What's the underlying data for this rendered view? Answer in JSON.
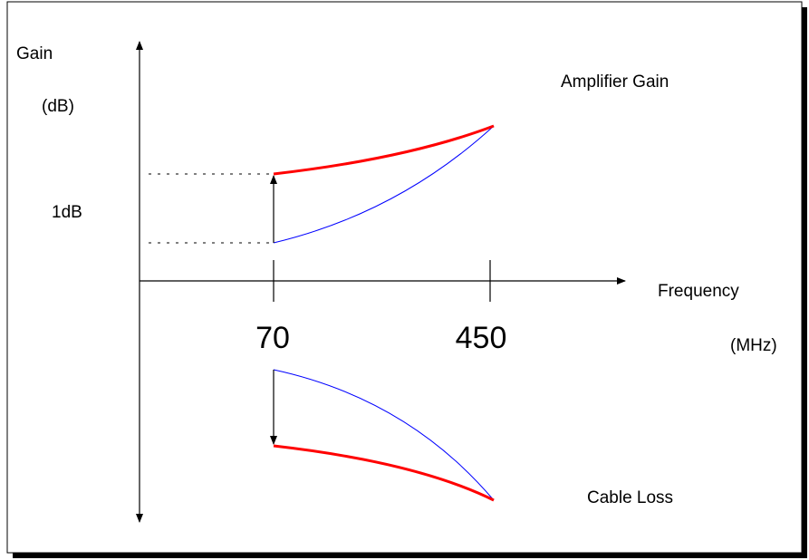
{
  "labels": {
    "gain": "Gain",
    "gain_unit": "(dB)",
    "one_db": "1dB",
    "amplifier_gain": "Amplifier Gain",
    "frequency": "Frequency",
    "frequency_unit": "(MHz)",
    "cable_loss": "Cable Loss"
  },
  "x_ticks": [
    "70",
    "450"
  ],
  "colors": {
    "thick_curve": "#ff0000",
    "thin_curve": "#0000ff",
    "axes": "#000000"
  }
}
